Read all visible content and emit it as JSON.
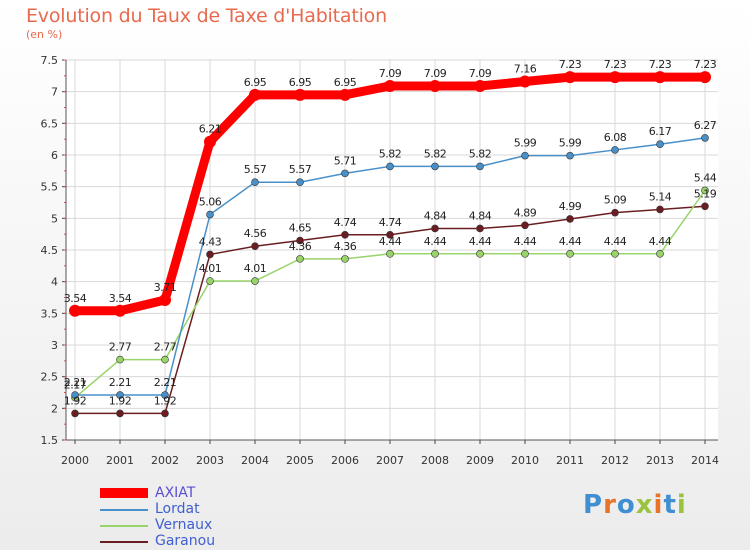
{
  "title": "Evolution du Taux de Taxe d'Habitation",
  "subtitle": "(en %)",
  "brand": {
    "text": "Proxiti",
    "colors": [
      "#3f8fd2",
      "#e8742a",
      "#3f8fd2",
      "#9ac43e",
      "#e8742a",
      "#3f8fd2",
      "#9ac43e"
    ]
  },
  "chart_data": {
    "type": "line",
    "title": "Evolution du Taux de Taxe d'Habitation",
    "ylabel": "(en %)",
    "xlabel": "",
    "x": [
      "2000",
      "2001",
      "2002",
      "2003",
      "2004",
      "2005",
      "2006",
      "2007",
      "2008",
      "2009",
      "2010",
      "2011",
      "2012",
      "2013",
      "2014"
    ],
    "ylim": [
      1.5,
      7.5
    ],
    "yticks": [
      "1.5",
      "2",
      "2.5",
      "3",
      "3.5",
      "4",
      "4.5",
      "5",
      "5.5",
      "6",
      "6.5",
      "7",
      "7.5"
    ],
    "grid": true,
    "legend_position": "bottom-left",
    "series": [
      {
        "name": "AXIAT",
        "color": "#ff0000",
        "values": [
          3.54,
          3.54,
          3.71,
          6.21,
          6.95,
          6.95,
          6.95,
          7.09,
          7.09,
          7.09,
          7.16,
          7.23,
          7.23,
          7.23,
          7.23
        ],
        "labels": [
          "3.54",
          "3.54",
          "3.71",
          "6.21",
          "6.95",
          "6.95",
          "6.95",
          "7.09",
          "7.09",
          "7.09",
          "7.16",
          "7.23",
          "7.23",
          "7.23",
          "7.23"
        ]
      },
      {
        "name": "Lordat",
        "color": "#4a90c8",
        "values": [
          2.21,
          2.21,
          2.21,
          5.06,
          5.57,
          5.57,
          5.71,
          5.82,
          5.82,
          5.82,
          5.99,
          5.99,
          6.08,
          6.17,
          6.27
        ],
        "labels": [
          "2.21",
          "2.21",
          "2.21",
          "5.06",
          "5.57",
          "5.57",
          "5.71",
          "5.82",
          "5.82",
          "5.82",
          "5.99",
          "5.99",
          "6.08",
          "6.17",
          "6.27"
        ]
      },
      {
        "name": "Vernaux",
        "color": "#99d46a",
        "values": [
          2.17,
          2.77,
          2.77,
          4.01,
          4.01,
          4.36,
          4.36,
          4.44,
          4.44,
          4.44,
          4.44,
          4.44,
          4.44,
          4.44,
          5.44
        ],
        "labels": [
          "2.17",
          "2.77",
          "2.77",
          "4.01",
          "4.01",
          "4.36",
          "4.36",
          "4.44",
          "4.44",
          "4.44",
          "4.44",
          "4.44",
          "4.44",
          "4.44",
          "5.44"
        ]
      },
      {
        "name": "Garanou",
        "color": "#6b1e22",
        "values": [
          1.92,
          1.92,
          1.92,
          4.43,
          4.56,
          4.65,
          4.74,
          4.74,
          4.84,
          4.84,
          4.89,
          4.99,
          5.09,
          5.14,
          5.19
        ],
        "labels": [
          "1.92",
          "1.92",
          "1.92",
          "4.43",
          "4.56",
          "4.65",
          "4.74",
          "4.74",
          "4.84",
          "4.84",
          "4.89",
          "4.99",
          "5.09",
          "5.14",
          "5.19"
        ]
      }
    ]
  }
}
